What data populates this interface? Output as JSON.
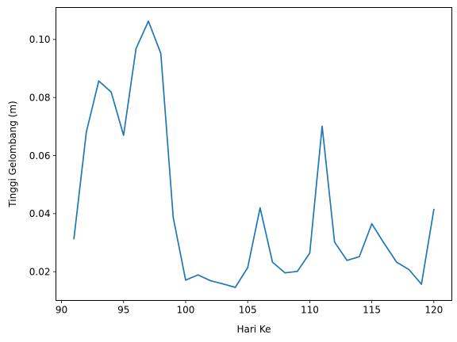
{
  "chart_data": {
    "type": "line",
    "title": "",
    "xlabel": "Hari Ke",
    "ylabel": "Tinggi Gelombang (m)",
    "xlim": [
      89.55,
      121.45
    ],
    "ylim": [
      0.0101,
      0.111
    ],
    "xticks": [
      90,
      95,
      100,
      105,
      110,
      115,
      120
    ],
    "yticks": [
      0.02,
      0.04,
      0.06,
      0.08,
      0.1
    ],
    "ytick_labels": [
      "0.02",
      "0.04",
      "0.06",
      "0.08",
      "0.10"
    ],
    "grid": false,
    "legend": "none",
    "series": [
      {
        "color": "#1f77b4",
        "x": [
          91,
          92,
          93,
          94,
          95,
          96,
          97,
          98,
          99,
          100,
          101,
          102,
          103,
          104,
          105,
          106,
          107,
          108,
          109,
          110,
          111,
          112,
          113,
          114,
          115,
          116,
          117,
          118,
          119,
          120
        ],
        "y": [
          0.0314,
          0.0681,
          0.0857,
          0.0819,
          0.067,
          0.0968,
          0.1063,
          0.0952,
          0.0387,
          0.0171,
          0.0189,
          0.0169,
          0.0158,
          0.0146,
          0.0214,
          0.042,
          0.0233,
          0.0196,
          0.0201,
          0.0264,
          0.0701,
          0.0302,
          0.0239,
          0.0252,
          0.0365,
          0.0297,
          0.0233,
          0.0207,
          0.0157,
          0.0414
        ]
      }
    ]
  }
}
